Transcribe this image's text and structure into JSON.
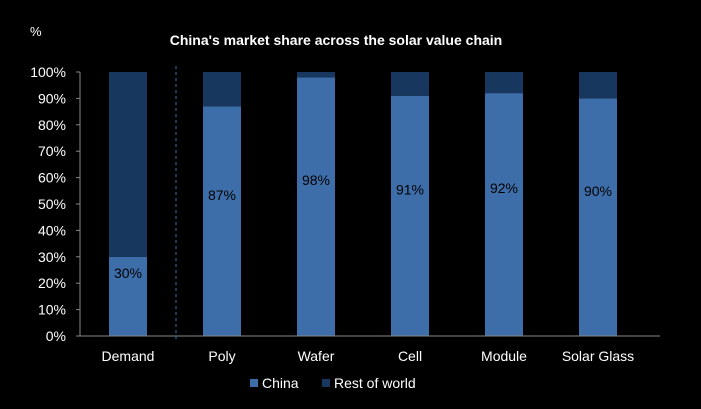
{
  "chart_data": {
    "type": "bar",
    "stacked": true,
    "title": "China's market share across  the solar value chain",
    "unit_label": "%",
    "categories": [
      "Demand",
      "Poly",
      "Wafer",
      "Cell",
      "Module",
      "Solar Glass"
    ],
    "series": [
      {
        "name": "China",
        "values": [
          30,
          87,
          98,
          91,
          92,
          90
        ],
        "color": "#3E6EA9"
      },
      {
        "name": "Rest of world",
        "values": [
          70,
          13,
          2,
          9,
          8,
          10
        ],
        "color": "#17375E"
      }
    ],
    "data_labels": [
      "30%",
      "87%",
      "98%",
      "91%",
      "92%",
      "90%"
    ],
    "ylim": [
      0,
      100
    ],
    "yticks": [
      0,
      10,
      20,
      30,
      40,
      50,
      60,
      70,
      80,
      90,
      100
    ],
    "ytick_labels": [
      "0%",
      "10%",
      "20%",
      "30%",
      "40%",
      "50%",
      "60%",
      "70%",
      "80%",
      "90%",
      "100%"
    ],
    "legend_position": "bottom",
    "separator_after_category": "Demand",
    "text_color": "#FFFFFF",
    "background": "#000000"
  }
}
